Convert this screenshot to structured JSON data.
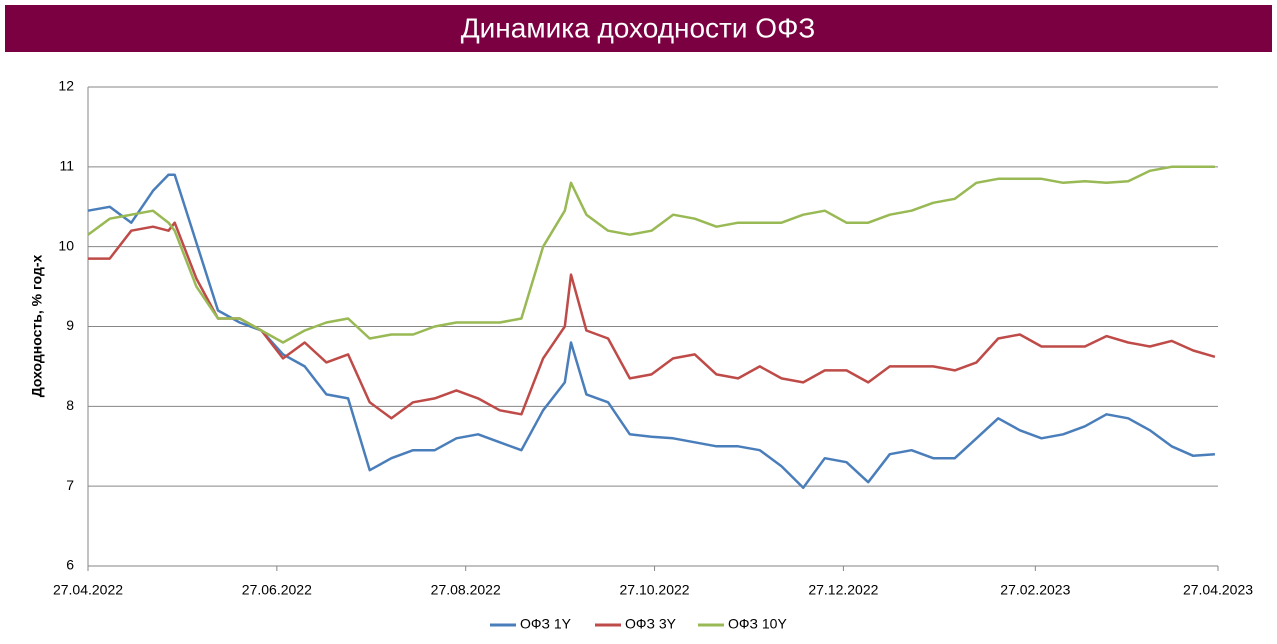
{
  "chart_data": {
    "type": "line",
    "title": "Динамика доходности ОФЗ",
    "y_label": "Доходность, % год-х",
    "x": [
      "27.04.2022",
      "04.05.2022",
      "11.05.2022",
      "18.05.2022",
      "23.05.2022",
      "25.05.2022",
      "01.06.2022",
      "08.06.2022",
      "15.06.2022",
      "22.06.2022",
      "29.06.2022",
      "06.07.2022",
      "13.07.2022",
      "20.07.2022",
      "27.07.2022",
      "03.08.2022",
      "10.08.2022",
      "17.08.2022",
      "24.08.2022",
      "31.08.2022",
      "07.09.2022",
      "14.09.2022",
      "21.09.2022",
      "28.09.2022",
      "30.09.2022",
      "05.10.2022",
      "12.10.2022",
      "19.10.2022",
      "26.10.2022",
      "02.11.2022",
      "09.11.2022",
      "16.11.2022",
      "23.11.2022",
      "30.11.2022",
      "07.12.2022",
      "14.12.2022",
      "21.12.2022",
      "28.12.2022",
      "04.01.2023",
      "11.01.2023",
      "18.01.2023",
      "25.01.2023",
      "01.02.2023",
      "08.02.2023",
      "15.02.2023",
      "22.02.2023",
      "01.03.2023",
      "08.03.2023",
      "15.03.2023",
      "22.03.2023",
      "29.03.2023",
      "05.04.2023",
      "12.04.2023",
      "19.04.2023",
      "26.04.2023"
    ],
    "series": [
      {
        "name": "ОФЗ 1Y",
        "color": "#4a7ebb",
        "values": [
          10.45,
          10.5,
          10.3,
          10.7,
          10.9,
          10.9,
          10.05,
          9.2,
          9.05,
          8.95,
          8.65,
          8.5,
          8.15,
          8.1,
          7.2,
          7.35,
          7.45,
          7.45,
          7.6,
          7.65,
          7.55,
          7.45,
          7.95,
          8.3,
          8.8,
          8.15,
          8.05,
          7.65,
          7.62,
          7.6,
          7.55,
          7.5,
          7.5,
          7.45,
          7.25,
          6.98,
          7.35,
          7.3,
          7.05,
          7.4,
          7.45,
          7.35,
          7.35,
          7.6,
          7.85,
          7.7,
          7.6,
          7.65,
          7.75,
          7.9,
          7.85,
          7.7,
          7.5,
          7.38,
          7.4
        ]
      },
      {
        "name": "ОФЗ 3Y",
        "color": "#be4b48",
        "values": [
          9.85,
          9.85,
          10.2,
          10.25,
          10.2,
          10.3,
          9.6,
          9.1,
          9.1,
          8.95,
          8.6,
          8.8,
          8.55,
          8.65,
          8.05,
          7.85,
          8.05,
          8.1,
          8.2,
          8.1,
          7.95,
          7.9,
          8.6,
          9.0,
          9.65,
          8.95,
          8.85,
          8.35,
          8.4,
          8.6,
          8.65,
          8.4,
          8.35,
          8.5,
          8.35,
          8.3,
          8.45,
          8.45,
          8.3,
          8.5,
          8.5,
          8.5,
          8.45,
          8.55,
          8.85,
          8.9,
          8.75,
          8.75,
          8.75,
          8.88,
          8.8,
          8.75,
          8.82,
          8.7,
          8.62
        ]
      },
      {
        "name": "ОФЗ 10Y",
        "color": "#98b954",
        "values": [
          10.15,
          10.35,
          10.4,
          10.45,
          10.3,
          10.2,
          9.5,
          9.1,
          9.1,
          8.95,
          8.8,
          8.95,
          9.05,
          9.1,
          8.85,
          8.9,
          8.9,
          9.0,
          9.05,
          9.05,
          9.05,
          9.1,
          10.0,
          10.45,
          10.8,
          10.4,
          10.2,
          10.15,
          10.2,
          10.4,
          10.35,
          10.25,
          10.3,
          10.3,
          10.3,
          10.4,
          10.45,
          10.3,
          10.3,
          10.4,
          10.45,
          10.55,
          10.6,
          10.8,
          10.85,
          10.85,
          10.85,
          10.8,
          10.82,
          10.8,
          10.82,
          10.95,
          11.0,
          11.0,
          11.0
        ]
      }
    ],
    "xlim": [
      "27.04.2022",
      "27.04.2023"
    ],
    "xticks": [
      "27.04.2022",
      "27.06.2022",
      "27.08.2022",
      "27.10.2022",
      "27.12.2022",
      "27.02.2023",
      "27.04.2023"
    ],
    "ylim": [
      6,
      12
    ],
    "yticks": [
      6,
      7,
      8,
      9,
      10,
      11,
      12
    ],
    "grid": true,
    "legend": "bottom"
  }
}
